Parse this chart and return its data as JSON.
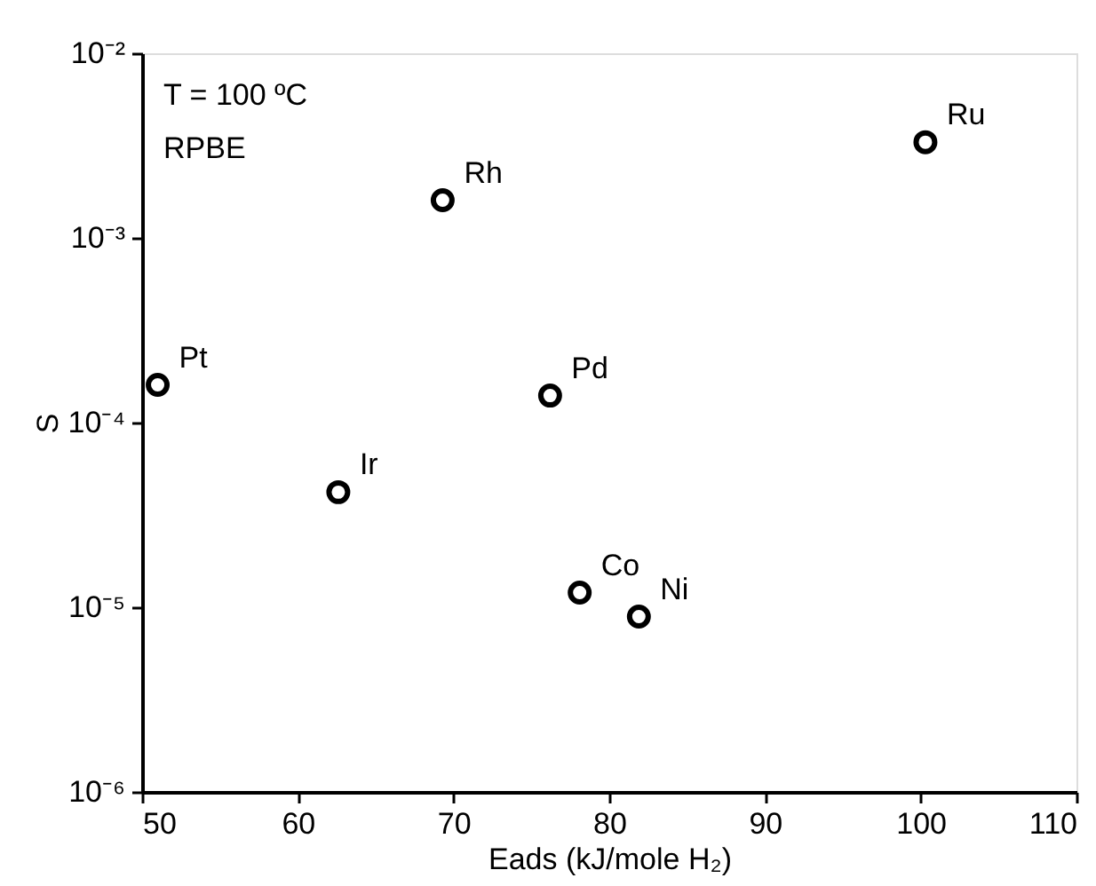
{
  "chart_data": {
    "type": "scatter",
    "xlabel": "Eads (kJ/mole H₂)",
    "ylabel": "S",
    "log": "y",
    "marker": "circle",
    "grid": false,
    "xlim": [
      50,
      110
    ],
    "xticks": [
      50,
      60,
      70,
      80,
      90,
      100,
      110
    ],
    "ylim": [
      1e-06,
      0.01
    ],
    "yticks": [
      {
        "value": 1e-06,
        "label": "10⁻⁶"
      },
      {
        "value": 1e-05,
        "label": "10⁻⁵"
      },
      {
        "value": 0.0001,
        "label": "10⁻⁴"
      },
      {
        "value": 0.001,
        "label": "10⁻³"
      },
      {
        "value": 0.01,
        "label": "10⁻²"
      }
    ],
    "annotations": [
      "T = 100 ºC",
      "RPBE"
    ],
    "series": [
      {
        "name": "Pt",
        "color": "#000000",
        "x": [
          51.0
        ],
        "values": [
          0.00016
        ]
      },
      {
        "name": "Ir",
        "color": "#000000",
        "x": [
          62.6
        ],
        "values": [
          4.2e-05
        ]
      },
      {
        "name": "Rh",
        "color": "#000000",
        "x": [
          69.3
        ],
        "values": [
          0.0016
        ]
      },
      {
        "name": "Pd",
        "color": "#000000",
        "x": [
          76.2
        ],
        "values": [
          0.00014
        ]
      },
      {
        "name": "Co",
        "color": "#000000",
        "x": [
          78.1
        ],
        "values": [
          1.2e-05
        ]
      },
      {
        "name": "Ni",
        "color": "#000000",
        "x": [
          81.9
        ],
        "values": [
          8.9e-06
        ]
      },
      {
        "name": "Ru",
        "color": "#000000",
        "x": [
          100.3
        ],
        "values": [
          0.0033
        ]
      }
    ]
  }
}
